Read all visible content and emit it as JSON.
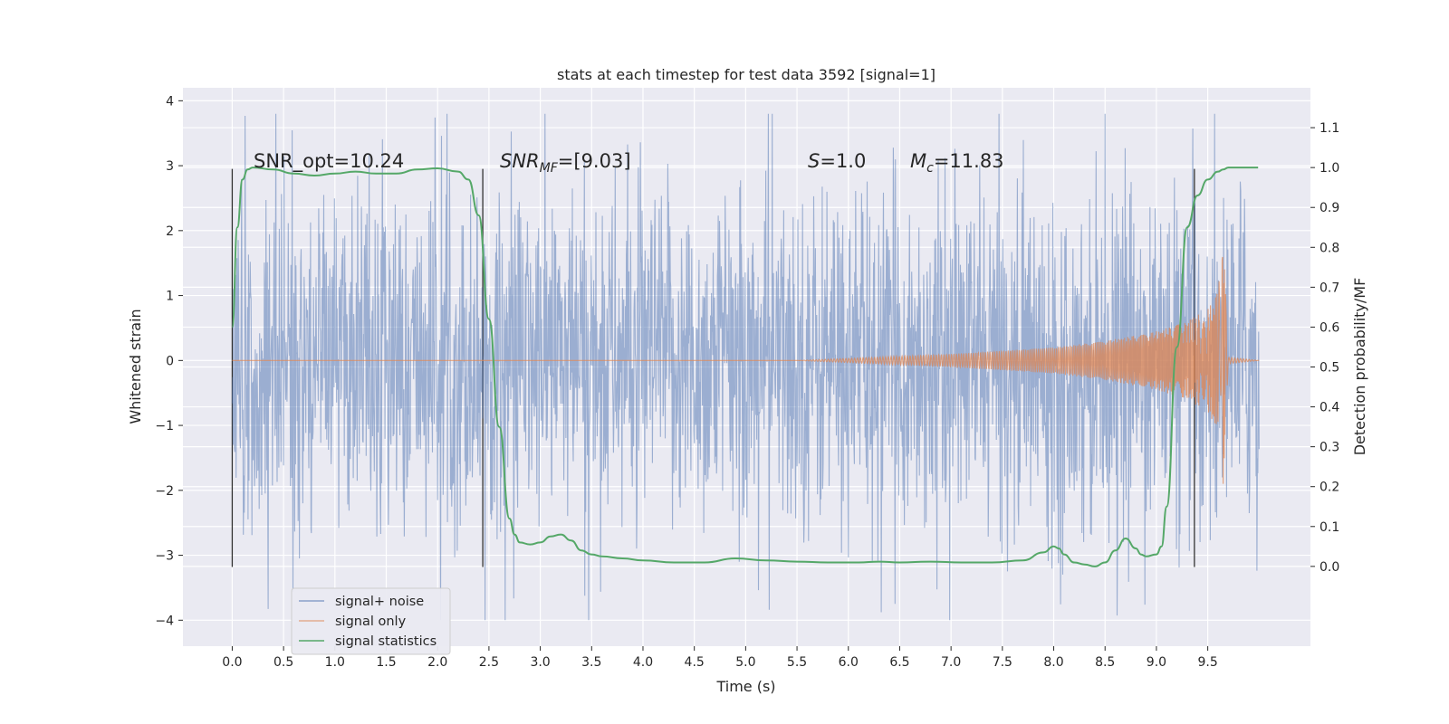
{
  "chart_data": {
    "type": "line",
    "title": "stats at each timestep for test data 3592 [signal=1]",
    "xlabel": "Time (s)",
    "ylabel_left": "Whitened strain",
    "ylabel_right": "Detection probability/MF",
    "xlim": [
      -0.48,
      10.5
    ],
    "ylim_left": [
      -4.4,
      4.2
    ],
    "ylim_right": [
      -0.2,
      1.2
    ],
    "x_ticks": [
      "0.0",
      "0.5",
      "1.0",
      "1.5",
      "2.0",
      "2.5",
      "3.0",
      "3.5",
      "4.0",
      "4.5",
      "5.0",
      "5.5",
      "6.0",
      "6.5",
      "7.0",
      "7.5",
      "8.0",
      "8.5",
      "9.0",
      "9.5"
    ],
    "y_left_ticks": [
      "−4",
      "−3",
      "−2",
      "−1",
      "0",
      "1",
      "2",
      "3",
      "4"
    ],
    "y_right_ticks": [
      "0.0",
      "0.1",
      "0.2",
      "0.3",
      "0.4",
      "0.5",
      "0.6",
      "0.7",
      "0.8",
      "0.9",
      "1.0",
      "1.1"
    ],
    "grid": true,
    "legend_position": "lower-left",
    "annotations": {
      "snr_opt": "SNR_opt=10.24",
      "snr_mf_main": "SNR",
      "snr_mf_sub": "MF",
      "snr_mf_rest": "=[9.03]",
      "s_main": "S",
      "s_rest": "=1.0",
      "mc_main": "M",
      "mc_sub": "c",
      "mc_rest": "=11.83"
    },
    "vertical_markers": [
      0.0,
      2.44,
      9.37
    ],
    "series": [
      {
        "name": "signal+ noise",
        "axis": "left",
        "color": "#4c72b0",
        "description_range": [
          -4.0,
          3.8
        ],
        "x_range": [
          0.0,
          10.0
        ]
      },
      {
        "name": "signal only",
        "axis": "left",
        "color": "#dd8452",
        "envelope_x": [
          0.0,
          5.5,
          7.0,
          8.0,
          8.5,
          9.0,
          9.3,
          9.5,
          9.6,
          9.65,
          9.7,
          10.0
        ],
        "envelope_amp": [
          0.0,
          0.0,
          0.1,
          0.2,
          0.3,
          0.45,
          0.6,
          0.8,
          1.05,
          1.9,
          0.05,
          0.0
        ]
      },
      {
        "name": "signal statistics",
        "axis": "right",
        "color": "#55a868",
        "x": [
          0.0,
          0.05,
          0.1,
          0.15,
          0.2,
          0.4,
          0.6,
          0.8,
          1.0,
          1.2,
          1.4,
          1.6,
          1.8,
          2.0,
          2.2,
          2.3,
          2.4,
          2.5,
          2.6,
          2.7,
          2.75,
          2.8,
          2.9,
          3.0,
          3.1,
          3.2,
          3.3,
          3.4,
          3.5,
          3.6,
          3.8,
          4.0,
          4.3,
          4.6,
          4.9,
          5.2,
          5.5,
          5.8,
          6.1,
          6.3,
          6.5,
          6.8,
          7.1,
          7.4,
          7.7,
          7.9,
          8.0,
          8.05,
          8.1,
          8.2,
          8.3,
          8.4,
          8.5,
          8.6,
          8.7,
          8.8,
          8.85,
          8.9,
          9.0,
          9.05,
          9.1,
          9.2,
          9.3,
          9.4,
          9.5,
          9.6,
          9.65,
          9.7,
          9.8,
          9.9,
          9.99
        ],
        "y": [
          0.6,
          0.85,
          0.97,
          0.995,
          1.0,
          0.995,
          0.985,
          0.98,
          0.985,
          0.99,
          0.985,
          0.985,
          0.995,
          0.998,
          0.99,
          0.97,
          0.88,
          0.62,
          0.35,
          0.12,
          0.08,
          0.06,
          0.055,
          0.06,
          0.075,
          0.08,
          0.065,
          0.04,
          0.03,
          0.025,
          0.02,
          0.015,
          0.01,
          0.01,
          0.02,
          0.015,
          0.012,
          0.01,
          0.01,
          0.012,
          0.01,
          0.012,
          0.01,
          0.01,
          0.015,
          0.035,
          0.05,
          0.045,
          0.03,
          0.01,
          0.005,
          0.0,
          0.01,
          0.04,
          0.07,
          0.045,
          0.03,
          0.025,
          0.03,
          0.05,
          0.15,
          0.55,
          0.85,
          0.93,
          0.97,
          0.99,
          0.995,
          1.0,
          1.0,
          1.0,
          1.0
        ]
      }
    ]
  }
}
